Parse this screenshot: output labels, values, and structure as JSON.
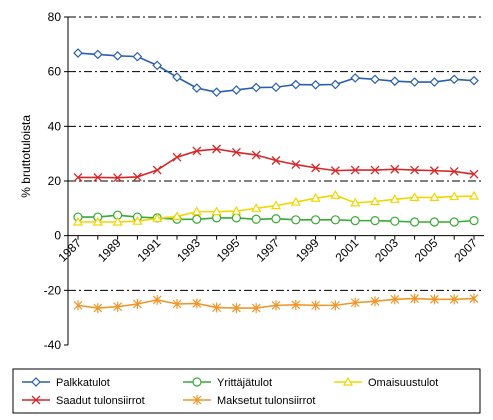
{
  "chart_data": {
    "type": "line",
    "ylabel": "% bruttotuloista",
    "ylim": [
      -40,
      80
    ],
    "yticks": [
      -40,
      -20,
      0,
      20,
      40,
      60,
      80
    ],
    "x": [
      1987,
      1988,
      1989,
      1990,
      1991,
      1992,
      1993,
      1994,
      1995,
      1996,
      1997,
      1998,
      1999,
      2000,
      2001,
      2002,
      2003,
      2004,
      2005,
      2006,
      2007
    ],
    "xtick_labels": [
      "1987",
      "1989",
      "1991",
      "1993",
      "1995",
      "1997",
      "1999",
      "2001",
      "2003",
      "2005",
      "2007"
    ],
    "grid": "horizontal dash-dot",
    "legend_position": "bottom",
    "series": [
      {
        "name": "Palkkatulot",
        "color": "#2a5fad",
        "marker": "diamond",
        "values": [
          66.8,
          66.3,
          65.8,
          65.5,
          62.3,
          58.0,
          54.0,
          52.5,
          53.3,
          54.2,
          54.3,
          55.3,
          55.2,
          55.3,
          57.7,
          57.2,
          56.5,
          56.2,
          56.2,
          57.2,
          56.7
        ]
      },
      {
        "name": "Yrittäjätulot",
        "color": "#3aa935",
        "marker": "circle",
        "values": [
          6.8,
          6.8,
          7.5,
          6.8,
          6.5,
          6.0,
          6.0,
          6.5,
          6.5,
          6.0,
          6.2,
          5.8,
          5.8,
          5.8,
          5.5,
          5.5,
          5.3,
          5.0,
          5.0,
          5.0,
          5.5
        ]
      },
      {
        "name": "Omaisuustulot",
        "color": "#f2d600",
        "marker": "triangle",
        "values": [
          5.0,
          5.0,
          5.0,
          5.3,
          6.3,
          7.0,
          8.8,
          8.8,
          9.0,
          10.0,
          11.0,
          12.3,
          13.7,
          14.8,
          12.0,
          12.5,
          13.3,
          14.0,
          14.0,
          14.3,
          14.5
        ]
      },
      {
        "name": "Saadut tulonsiirrot",
        "color": "#d62728",
        "marker": "x",
        "values": [
          21.3,
          21.3,
          21.2,
          21.5,
          24.0,
          28.7,
          31.0,
          31.7,
          30.5,
          29.5,
          27.5,
          26.0,
          24.8,
          23.8,
          24.0,
          24.0,
          24.3,
          24.0,
          23.8,
          23.5,
          22.5
        ]
      },
      {
        "name": "Maksetut tulonsiirrot",
        "color": "#f0962a",
        "marker": "star",
        "values": [
          -25.5,
          -26.5,
          -26.0,
          -25.0,
          -23.5,
          -25.0,
          -24.8,
          -26.3,
          -26.5,
          -26.5,
          -25.5,
          -25.3,
          -25.5,
          -25.5,
          -24.5,
          -24.0,
          -23.3,
          -23.0,
          -23.3,
          -23.3,
          -23.0
        ]
      }
    ]
  }
}
